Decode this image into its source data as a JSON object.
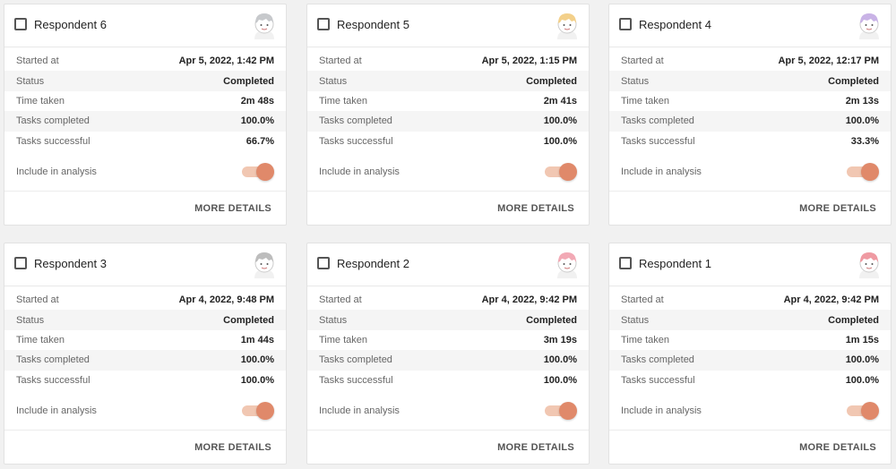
{
  "labels": {
    "started_at": "Started at",
    "status": "Status",
    "time_taken": "Time taken",
    "tasks_completed": "Tasks completed",
    "tasks_successful": "Tasks successful",
    "include_in_analysis": "Include in analysis",
    "more_details": "MORE DETAILS"
  },
  "cards": [
    {
      "name": "Respondent 6",
      "started_at": "Apr 5, 2022, 1:42 PM",
      "status": "Completed",
      "time_taken": "2m 48s",
      "tasks_completed": "100.0%",
      "tasks_successful": "66.7%",
      "avatar_icon": "respondent-avatar-icon",
      "avatar_color": "#c7c9cc",
      "include": true
    },
    {
      "name": "Respondent 5",
      "started_at": "Apr 5, 2022, 1:15 PM",
      "status": "Completed",
      "time_taken": "2m 41s",
      "tasks_completed": "100.0%",
      "tasks_successful": "100.0%",
      "avatar_icon": "respondent-avatar-icon",
      "avatar_color": "#f3d08a",
      "include": true
    },
    {
      "name": "Respondent 4",
      "started_at": "Apr 5, 2022, 12:17 PM",
      "status": "Completed",
      "time_taken": "2m 13s",
      "tasks_completed": "100.0%",
      "tasks_successful": "33.3%",
      "avatar_icon": "respondent-avatar-icon",
      "avatar_color": "#c9b3e6",
      "include": true
    },
    {
      "name": "Respondent 3",
      "started_at": "Apr 4, 2022, 9:48 PM",
      "status": "Completed",
      "time_taken": "1m 44s",
      "tasks_completed": "100.0%",
      "tasks_successful": "100.0%",
      "avatar_icon": "respondent-avatar-icon",
      "avatar_color": "#bdbdbd",
      "include": true
    },
    {
      "name": "Respondent 2",
      "started_at": "Apr 4, 2022, 9:42 PM",
      "status": "Completed",
      "time_taken": "3m 19s",
      "tasks_completed": "100.0%",
      "tasks_successful": "100.0%",
      "avatar_icon": "respondent-avatar-icon",
      "avatar_color": "#f2a9b5",
      "include": true
    },
    {
      "name": "Respondent 1",
      "started_at": "Apr 4, 2022, 9:42 PM",
      "status": "Completed",
      "time_taken": "1m 15s",
      "tasks_completed": "100.0%",
      "tasks_successful": "100.0%",
      "avatar_icon": "respondent-avatar-icon",
      "avatar_color": "#ef9aa2",
      "include": true
    }
  ]
}
